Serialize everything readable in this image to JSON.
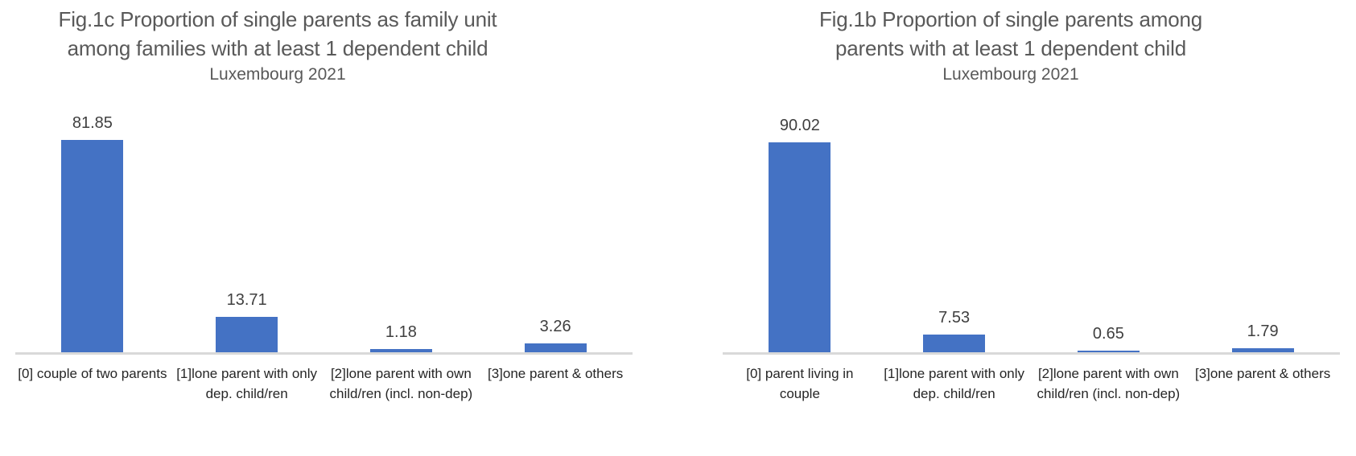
{
  "page": {
    "background": "#FFFFFF"
  },
  "chart_data": [
    {
      "type": "bar",
      "title": "Fig.1c Proportion of single parents as family unit among families with at least 1 dependent child",
      "title_lines": [
        "Fig.1c Proportion of single parents as family unit",
        "among  families with at least 1 dependent child"
      ],
      "subtitle": "Luxembourg 2021",
      "categories": [
        "[0] couple of two parents",
        "[1]lone parent with only dep. child/ren",
        "[2]lone parent with own child/ren (incl. non-dep)",
        "[3]one parent & others"
      ],
      "values": [
        81.85,
        13.71,
        1.18,
        3.26
      ],
      "value_labels": [
        "81.85",
        "13.71",
        "1.18",
        "3.26"
      ],
      "xlabel": "",
      "ylabel": "",
      "ylim": [
        0,
        90
      ],
      "grid": false,
      "legend": "none",
      "bar_color": "#4472C4",
      "baseline_color": "#D9D9D9",
      "title_color": "#595959",
      "value_label_color": "#3F3F3F",
      "category_label_color": "#262626"
    },
    {
      "type": "bar",
      "title": "Fig.1b Proportion of single parents among parents with at least 1 dependent child",
      "title_lines": [
        "Fig.1b Proportion of single parents among",
        "parents with at least 1 dependent child"
      ],
      "subtitle": "Luxembourg 2021",
      "categories": [
        "[0] parent living in couple",
        "[1]lone parent with only dep. child/ren",
        "[2]lone parent with own child/ren (incl. non-dep)",
        "[3]one parent & others"
      ],
      "values": [
        90.02,
        7.53,
        0.65,
        1.79
      ],
      "value_labels": [
        "90.02",
        "7.53",
        "0.65",
        "1.79"
      ],
      "xlabel": "",
      "ylabel": "",
      "ylim": [
        0,
        100
      ],
      "grid": false,
      "legend": "none",
      "bar_color": "#4472C4",
      "baseline_color": "#D9D9D9",
      "title_color": "#595959",
      "value_label_color": "#3F3F3F",
      "category_label_color": "#262626"
    }
  ]
}
